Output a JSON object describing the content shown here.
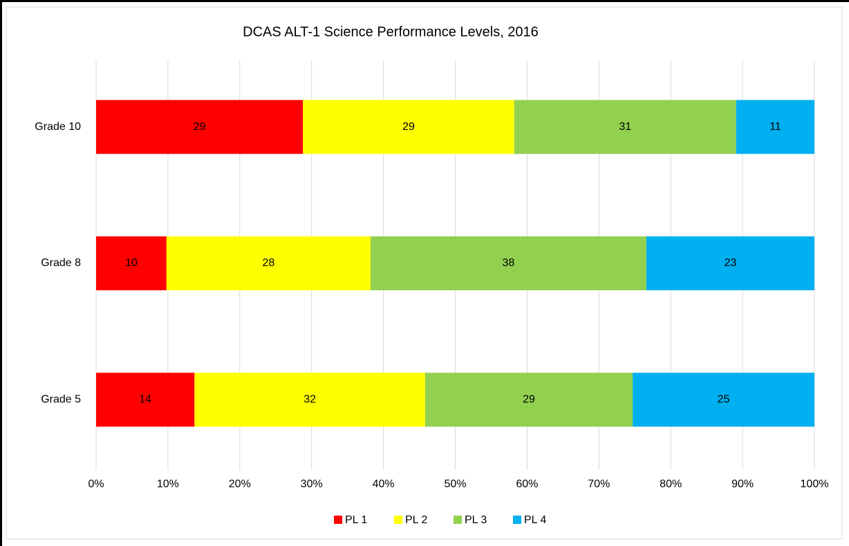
{
  "chart_data": {
    "type": "stacked_bar_horizontal",
    "title": "DCAS ALT-1 Science Performance Levels, 2016",
    "categories": [
      "Grade 10",
      "Grade 8",
      "Grade 5"
    ],
    "series": [
      {
        "name": "PL 1",
        "color": "#ff0000",
        "values": [
          28.8,
          9.8,
          13.7
        ],
        "value_labels": [
          "29",
          "10",
          "14"
        ]
      },
      {
        "name": "PL 2",
        "color": "#ffff00",
        "values": [
          29.4,
          28.4,
          32.1
        ],
        "value_labels": [
          "29",
          "28",
          "32"
        ]
      },
      {
        "name": "PL 3",
        "color": "#92d050",
        "values": [
          30.9,
          38.4,
          28.9
        ],
        "value_labels": [
          "31",
          "38",
          "29"
        ]
      },
      {
        "name": "PL 4",
        "color": "#00b0f0",
        "values": [
          10.9,
          23.4,
          25.3
        ],
        "value_labels": [
          "11",
          "23",
          "25"
        ]
      }
    ],
    "xlim": [
      0,
      100
    ],
    "xticks": [
      {
        "value": 0,
        "label": "0%"
      },
      {
        "value": 10,
        "label": "10%"
      },
      {
        "value": 20,
        "label": "20%"
      },
      {
        "value": 30,
        "label": "30%"
      },
      {
        "value": 40,
        "label": "40%"
      },
      {
        "value": 50,
        "label": "50%"
      },
      {
        "value": 60,
        "label": "60%"
      },
      {
        "value": 70,
        "label": "70%"
      },
      {
        "value": 80,
        "label": "80%"
      },
      {
        "value": 90,
        "label": "90%"
      },
      {
        "value": 100,
        "label": "100%"
      }
    ],
    "grid": true,
    "legend": "bottom"
  }
}
